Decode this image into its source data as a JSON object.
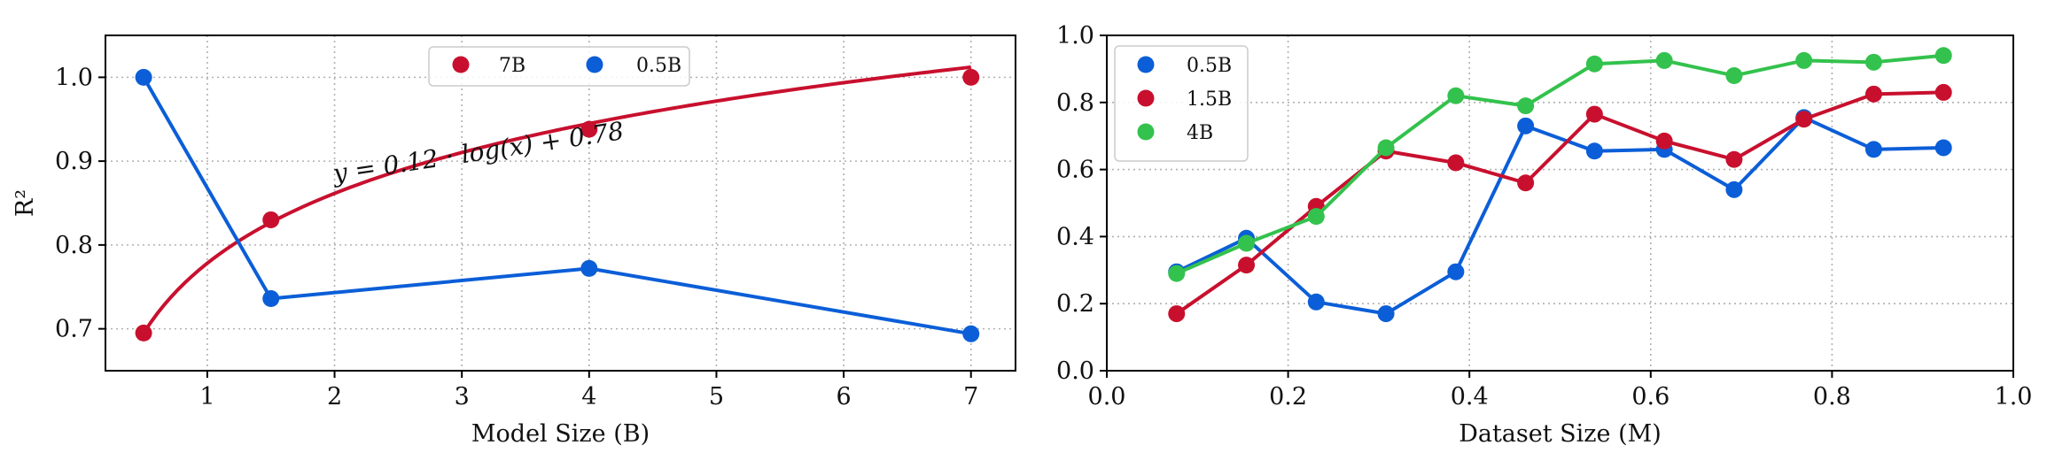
{
  "chart_data": [
    {
      "type": "line",
      "title": "",
      "xlabel": "Model Size (B)",
      "ylabel": "R²",
      "xlim": [
        0.2,
        7.35
      ],
      "ylim": [
        0.65,
        1.05
      ],
      "xticks": [
        "1",
        "2",
        "3",
        "4",
        "5",
        "6",
        "7"
      ],
      "yticks": [
        "0.7",
        "0.8",
        "0.9",
        "1.0"
      ],
      "grid": true,
      "legend_position": "top-center",
      "annotation": "y = 0.12 · log(x) + 0.78",
      "series": [
        {
          "name": "7B",
          "color": "#c8102e",
          "points_x": [
            0.5,
            1.5,
            4,
            7
          ],
          "points_y": [
            0.695,
            0.83,
            0.938,
            1.0
          ],
          "fit": {
            "kind": "log",
            "a": 0.1202,
            "b": 0.7782,
            "x_range": [
              0.5,
              7
            ]
          }
        },
        {
          "name": "0.5B",
          "color": "#0b5ed7",
          "points_x": [
            0.5,
            1.5,
            4,
            7
          ],
          "points_y": [
            1.0,
            0.736,
            0.772,
            0.694
          ]
        }
      ]
    },
    {
      "type": "line",
      "title": "",
      "xlabel": "Dataset Size (M)",
      "ylabel": "",
      "xlim": [
        0.0,
        1.0
      ],
      "ylim": [
        0.0,
        1.0
      ],
      "xticks": [
        "0.0",
        "0.2",
        "0.4",
        "0.6",
        "0.8",
        "1.0"
      ],
      "yticks": [
        "0.0",
        "0.2",
        "0.4",
        "0.6",
        "0.8",
        "1.0"
      ],
      "grid": true,
      "legend_position": "top-left",
      "x": [
        0.077,
        0.154,
        0.231,
        0.308,
        0.385,
        0.462,
        0.538,
        0.615,
        0.692,
        0.769,
        0.846,
        0.923
      ],
      "series": [
        {
          "name": "0.5B",
          "color": "#0b5ed7",
          "values": [
            0.295,
            0.395,
            0.205,
            0.17,
            0.295,
            0.73,
            0.655,
            0.66,
            0.54,
            0.755,
            0.66,
            0.665
          ]
        },
        {
          "name": "1.5B",
          "color": "#c8102e",
          "values": [
            0.17,
            0.315,
            0.49,
            0.655,
            0.62,
            0.56,
            0.765,
            0.685,
            0.63,
            0.75,
            0.825,
            0.83
          ]
        },
        {
          "name": "4B",
          "color": "#33c24d",
          "values": [
            0.29,
            0.38,
            0.46,
            0.665,
            0.82,
            0.79,
            0.915,
            0.925,
            0.88,
            0.925,
            0.92,
            0.94
          ]
        }
      ]
    }
  ]
}
